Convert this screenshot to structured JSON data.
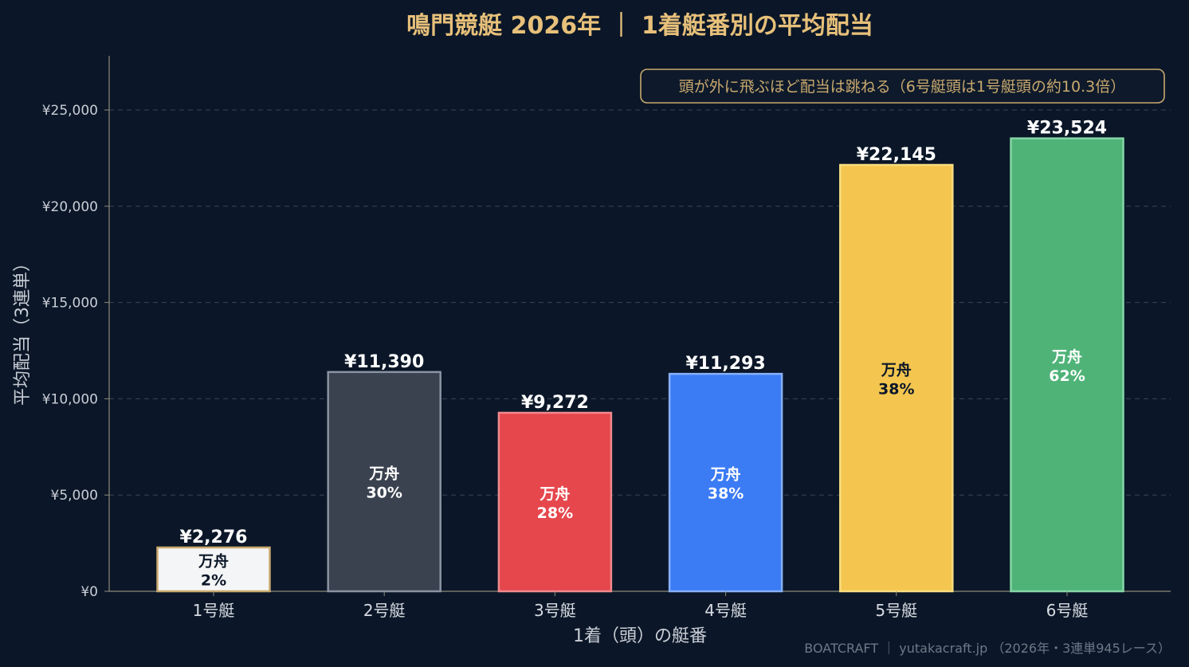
{
  "chart_data": {
    "type": "bar",
    "title": "鳴門競艇 2026年 ｜ 1着艇番別の平均配当",
    "xlabel": "1着（頭）の艇番",
    "ylabel": "平均配当（3連単）",
    "categories": [
      "1号艇",
      "2号艇",
      "3号艇",
      "4号艇",
      "5号艇",
      "6号艇"
    ],
    "values": [
      2276,
      11390,
      9272,
      11293,
      22145,
      23524
    ],
    "value_labels": [
      "¥2,276",
      "¥11,390",
      "¥9,272",
      "¥11,293",
      "¥22,145",
      "¥23,524"
    ],
    "manshu_label": "万舟",
    "manshu_rates": [
      "2%",
      "30%",
      "28%",
      "38%",
      "38%",
      "62%"
    ],
    "ylim": [
      0,
      28000
    ],
    "yticks": [
      0,
      5000,
      10000,
      15000,
      20000,
      25000
    ],
    "ytick_labels": [
      "¥0",
      "¥5,000",
      "¥10,000",
      "¥15,000",
      "¥20,000",
      "¥25,000"
    ],
    "bar_colors": [
      "#f4f5f6",
      "#3a4250",
      "#e5474d",
      "#3b7bf4",
      "#f4c64f",
      "#4fb378"
    ],
    "bar_edge_colors": [
      "#c9a96e",
      "#8a93a1",
      "#f08a8e",
      "#86b0f9",
      "#f9dd80",
      "#86d6a6"
    ],
    "inner_text_colors": [
      "#0b1728",
      "#ffffff",
      "#ffffff",
      "#ffffff",
      "#0b1728",
      "#ffffff"
    ],
    "grid": true,
    "legend": "none",
    "annotation": "頭が外に飛ぶほど配当は跳ねる（6号艇頭は1号艇頭の約10.3倍）",
    "annotation_placement": "top-right"
  },
  "footer": "BOATCRAFT ｜ yutakacraft.jp （2026年・3連単945レース）",
  "colors": {
    "background": "#0b1728",
    "title": "#e7c07a",
    "grid": "#3a4552",
    "axis": "#8d8a7a"
  }
}
